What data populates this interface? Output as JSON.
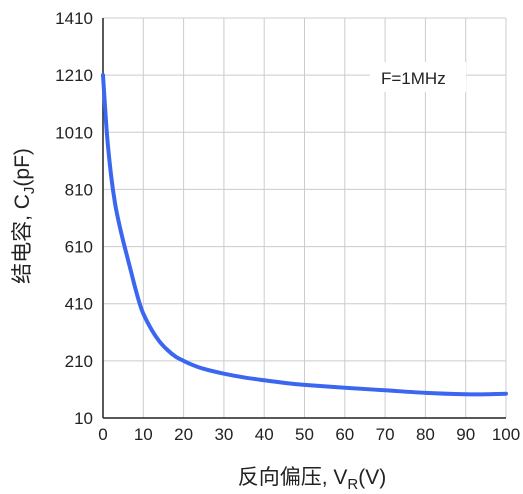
{
  "chart_data": {
    "type": "line",
    "title": "",
    "xlabel": "反向偏压, V",
    "xlabel_sub": "R",
    "xlabel_tail": "(V)",
    "ylabel": "结电容, C",
    "ylabel_sub": "J",
    "ylabel_tail": "(pF)",
    "xlim": [
      0,
      100
    ],
    "ylim": [
      10,
      1410
    ],
    "x_ticks": [
      "0",
      "10",
      "20",
      "30",
      "40",
      "50",
      "60",
      "70",
      "80",
      "90",
      "100"
    ],
    "y_ticks": [
      "10",
      "210",
      "410",
      "610",
      "810",
      "1010",
      "1210",
      "1410"
    ],
    "grid": true,
    "annotation": "F=1MHz",
    "colors": {
      "line": "#3b67f0",
      "grid": "#cccccc",
      "axis": "#222222"
    },
    "series": [
      {
        "x": [
          0,
          1,
          2,
          3,
          4,
          5,
          6,
          7,
          8,
          9,
          10,
          12,
          14,
          16,
          18,
          20,
          22,
          25,
          30,
          35,
          40,
          45,
          50,
          60,
          70,
          80,
          90,
          95,
          100
        ],
        "values": [
          1210,
          1000,
          860,
          760,
          690,
          630,
          575,
          520,
          465,
          415,
          375,
          320,
          278,
          248,
          225,
          210,
          197,
          182,
          165,
          152,
          142,
          133,
          126,
          116,
          107,
          98,
          93,
          93,
          95
        ]
      }
    ]
  }
}
